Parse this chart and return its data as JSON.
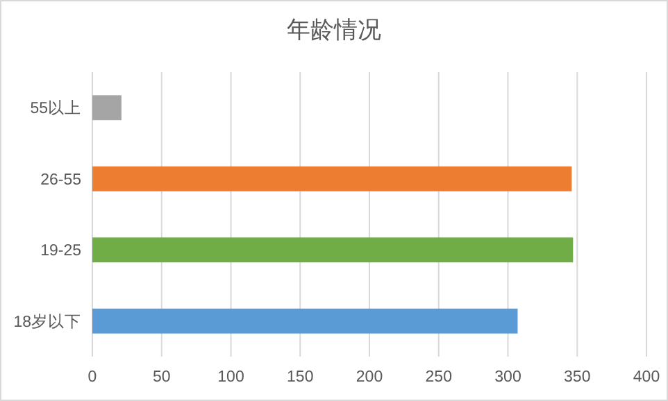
{
  "chart_data": {
    "type": "bar",
    "title": "年龄情况",
    "orientation": "horizontal",
    "categories": [
      "55以上",
      "26-55",
      "19-25",
      "18岁以下"
    ],
    "values": [
      21,
      346,
      347,
      307
    ],
    "colors": [
      "#a5a5a5",
      "#ed7d31",
      "#70ad47",
      "#5b9bd5"
    ],
    "xlim": [
      0,
      400
    ],
    "xticks": [
      0,
      50,
      100,
      150,
      200,
      250,
      300,
      350,
      400
    ],
    "grid": "x"
  }
}
